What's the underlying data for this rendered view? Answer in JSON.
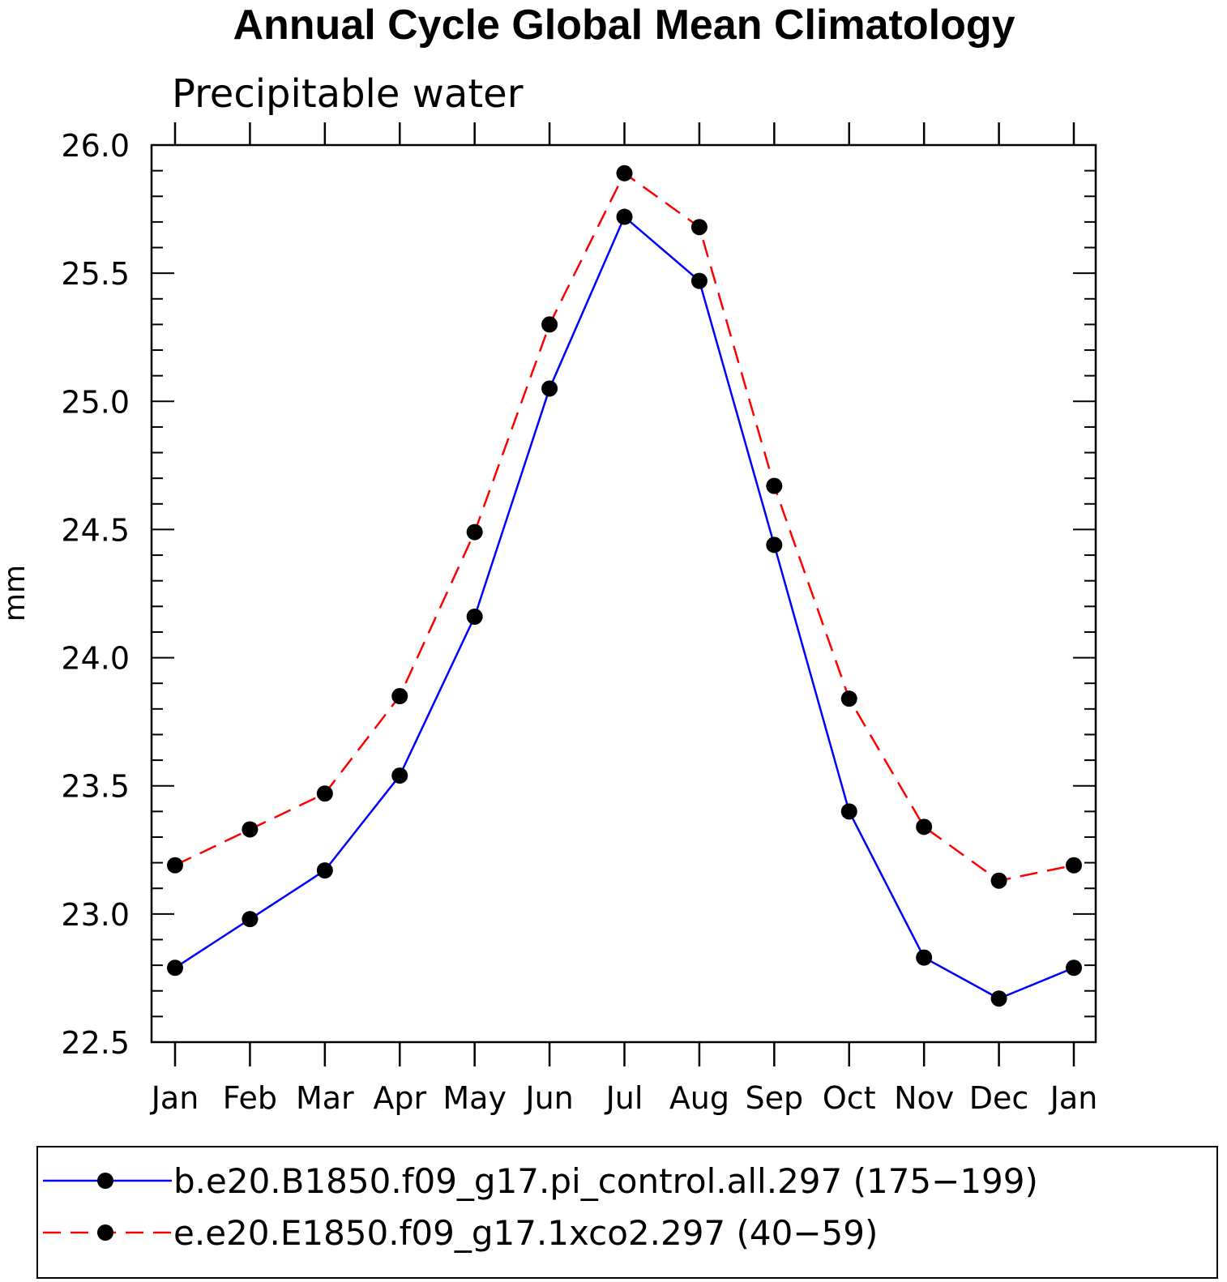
{
  "chart_data": {
    "type": "line",
    "title": "Annual Cycle Global Mean Climatology",
    "subtitle": "Precipitable water",
    "xlabel": "",
    "ylabel": "mm",
    "categories": [
      "Jan",
      "Feb",
      "Mar",
      "Apr",
      "May",
      "Jun",
      "Jul",
      "Aug",
      "Sep",
      "Oct",
      "Nov",
      "Dec",
      "Jan"
    ],
    "ylim": [
      22.5,
      26.0
    ],
    "yticks": [
      "22.5",
      "23.0",
      "23.5",
      "24.0",
      "24.5",
      "25.0",
      "25.5",
      "26.0"
    ],
    "series": [
      {
        "name": "b.e20.B1850.f09_g17.pi_control.all.297 (175-199)",
        "color": "#0000ff",
        "dash": "solid",
        "values": [
          22.79,
          22.98,
          23.17,
          23.54,
          24.16,
          25.05,
          25.72,
          25.47,
          24.44,
          23.4,
          22.83,
          22.67,
          22.79
        ]
      },
      {
        "name": "e.e20.E1850.f09_g17.1xco2.297 (40-59)",
        "color": "#ff0000",
        "dash": "dashed",
        "values": [
          23.19,
          23.33,
          23.47,
          23.85,
          24.49,
          25.3,
          25.89,
          25.68,
          24.67,
          23.84,
          23.34,
          23.13,
          23.19
        ]
      }
    ],
    "legend": [
      "b.e20.B1850.f09_g17.pi_control.all.297 (175−199)",
      "e.e20.E1850.f09_g17.1xco2.297 (40−59)"
    ],
    "legend_position": "bottom",
    "grid": false
  }
}
